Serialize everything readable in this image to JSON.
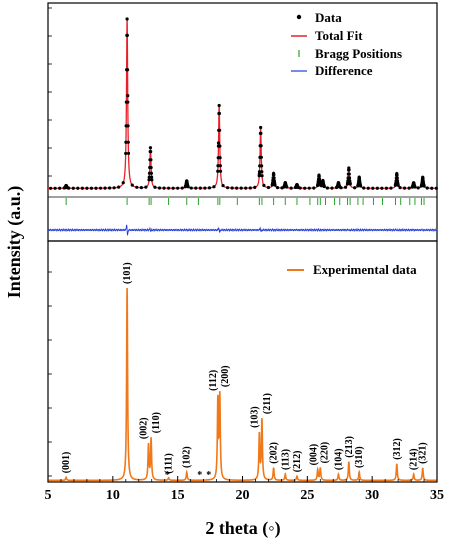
{
  "chart_data": {
    "type": "line",
    "xlabel": "2 theta (◦)",
    "ylabel": "Intensity (a.u.)",
    "xlim": [
      5,
      35
    ],
    "xticks": [
      5,
      10,
      15,
      20,
      25,
      30,
      35
    ],
    "grid": false,
    "refinement_panel": {
      "legend": {
        "placement": "top-right",
        "entries": [
          {
            "label": "Data",
            "color": "#000000",
            "symbol": "dot"
          },
          {
            "label": "Total Fit",
            "color": "#e8202a",
            "symbol": "line"
          },
          {
            "label": "Bragg Positions",
            "color": "#2ca02c",
            "symbol": "tick"
          },
          {
            "label": "Difference",
            "color": "#1f3bdb",
            "symbol": "line"
          }
        ]
      },
      "ylim": [
        0,
        1.0
      ],
      "baseline": 0.02,
      "peaks": [
        {
          "x": 6.4,
          "y": 0.015
        },
        {
          "x": 11.1,
          "y": 0.92
        },
        {
          "x": 12.9,
          "y": 0.22
        },
        {
          "x": 15.7,
          "y": 0.04
        },
        {
          "x": 18.2,
          "y": 0.45
        },
        {
          "x": 21.4,
          "y": 0.33
        },
        {
          "x": 22.4,
          "y": 0.08
        },
        {
          "x": 23.3,
          "y": 0.03
        },
        {
          "x": 24.2,
          "y": 0.02
        },
        {
          "x": 25.9,
          "y": 0.07
        },
        {
          "x": 26.2,
          "y": 0.04
        },
        {
          "x": 27.4,
          "y": 0.03
        },
        {
          "x": 28.2,
          "y": 0.11
        },
        {
          "x": 29.0,
          "y": 0.06
        },
        {
          "x": 31.9,
          "y": 0.08
        },
        {
          "x": 33.2,
          "y": 0.03
        },
        {
          "x": 33.9,
          "y": 0.06
        }
      ],
      "bragg_positions": [
        6.4,
        11.1,
        12.8,
        12.95,
        14.3,
        15.7,
        16.6,
        18.1,
        18.25,
        19.6,
        21.3,
        21.5,
        22.4,
        23.3,
        24.2,
        25.2,
        25.8,
        26.0,
        26.4,
        27.1,
        27.5,
        28.1,
        28.3,
        28.9,
        29.3,
        30.1,
        30.8,
        31.8,
        32.2,
        32.9,
        33.3,
        33.8,
        34.0
      ]
    },
    "experimental_panel": {
      "series": [
        {
          "name": "Experimental data",
          "color": "#f07818"
        }
      ],
      "legend": {
        "placement": "top-right"
      },
      "ylim": [
        0,
        1.0
      ],
      "peaks": [
        {
          "x": 6.4,
          "y": 0.015,
          "label": "(001)"
        },
        {
          "x": 11.1,
          "y": 0.93,
          "label": "(101)"
        },
        {
          "x": 12.75,
          "y": 0.17,
          "label": "(002)"
        },
        {
          "x": 12.95,
          "y": 0.2,
          "label": "(110)"
        },
        {
          "x": 14.3,
          "y": 0.012,
          "label": "(111)"
        },
        {
          "x": 15.7,
          "y": 0.04,
          "label": "(102)"
        },
        {
          "x": 18.1,
          "y": 0.38,
          "label": "(112)"
        },
        {
          "x": 18.25,
          "y": 0.4,
          "label": "(200)"
        },
        {
          "x": 21.3,
          "y": 0.22,
          "label": "(103)"
        },
        {
          "x": 21.5,
          "y": 0.29,
          "label": "(211)"
        },
        {
          "x": 22.4,
          "y": 0.06,
          "label": "(202)"
        },
        {
          "x": 23.3,
          "y": 0.03,
          "label": "(113)"
        },
        {
          "x": 24.2,
          "y": 0.02,
          "label": "(212)"
        },
        {
          "x": 25.8,
          "y": 0.05,
          "label": "(004)"
        },
        {
          "x": 26.0,
          "y": 0.06,
          "label": "(220)"
        },
        {
          "x": 27.4,
          "y": 0.03,
          "label": "(104)"
        },
        {
          "x": 28.2,
          "y": 0.09,
          "label": "(213)"
        },
        {
          "x": 29.0,
          "y": 0.04,
          "label": "(310)"
        },
        {
          "x": 31.9,
          "y": 0.08,
          "label": "(312)"
        },
        {
          "x": 33.2,
          "y": 0.03,
          "label": "(214)"
        },
        {
          "x": 33.9,
          "y": 0.06,
          "label": "(321)"
        }
      ],
      "asterisks": [
        {
          "x": 14.2,
          "label": "*"
        },
        {
          "x": 16.7,
          "label": "*"
        },
        {
          "x": 17.4,
          "label": "*"
        }
      ]
    }
  }
}
